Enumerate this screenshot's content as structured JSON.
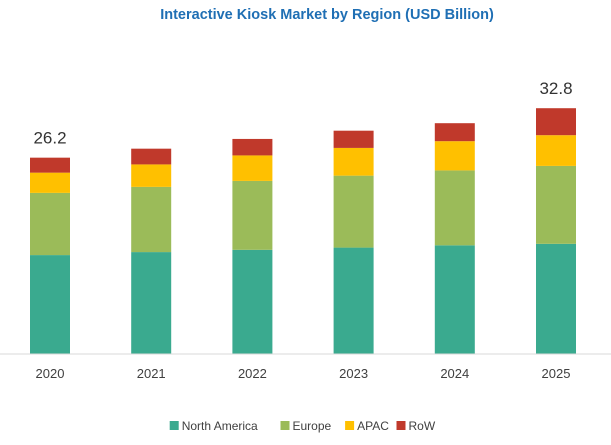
{
  "chart_data": {
    "type": "bar",
    "stacked": true,
    "title": "Interactive Kiosk Market by Region (USD Billion)",
    "xlabel": "",
    "ylabel": "",
    "categories": [
      "2020",
      "2021",
      "2022",
      "2023",
      "2024",
      "2025"
    ],
    "series": [
      {
        "name": "North America",
        "color": "#3aaa8f",
        "values": [
          13.2,
          13.6,
          13.9,
          14.2,
          14.5,
          14.7
        ]
      },
      {
        "name": "Europe",
        "color": "#9bbb59",
        "values": [
          8.3,
          8.7,
          9.2,
          9.6,
          10.0,
          10.4
        ]
      },
      {
        "name": "APAC",
        "color": "#ffc000",
        "values": [
          2.7,
          3.0,
          3.4,
          3.7,
          3.9,
          4.1
        ]
      },
      {
        "name": "RoW",
        "color": "#c0392b",
        "values": [
          2.0,
          2.1,
          2.2,
          2.3,
          2.4,
          3.6
        ]
      }
    ],
    "data_labels": [
      {
        "category": "2020",
        "text": "26.2"
      },
      {
        "category": "2025",
        "text": "32.8"
      }
    ],
    "ylim": [
      0,
      39.5
    ],
    "grid": false,
    "legend_position": "bottom"
  }
}
